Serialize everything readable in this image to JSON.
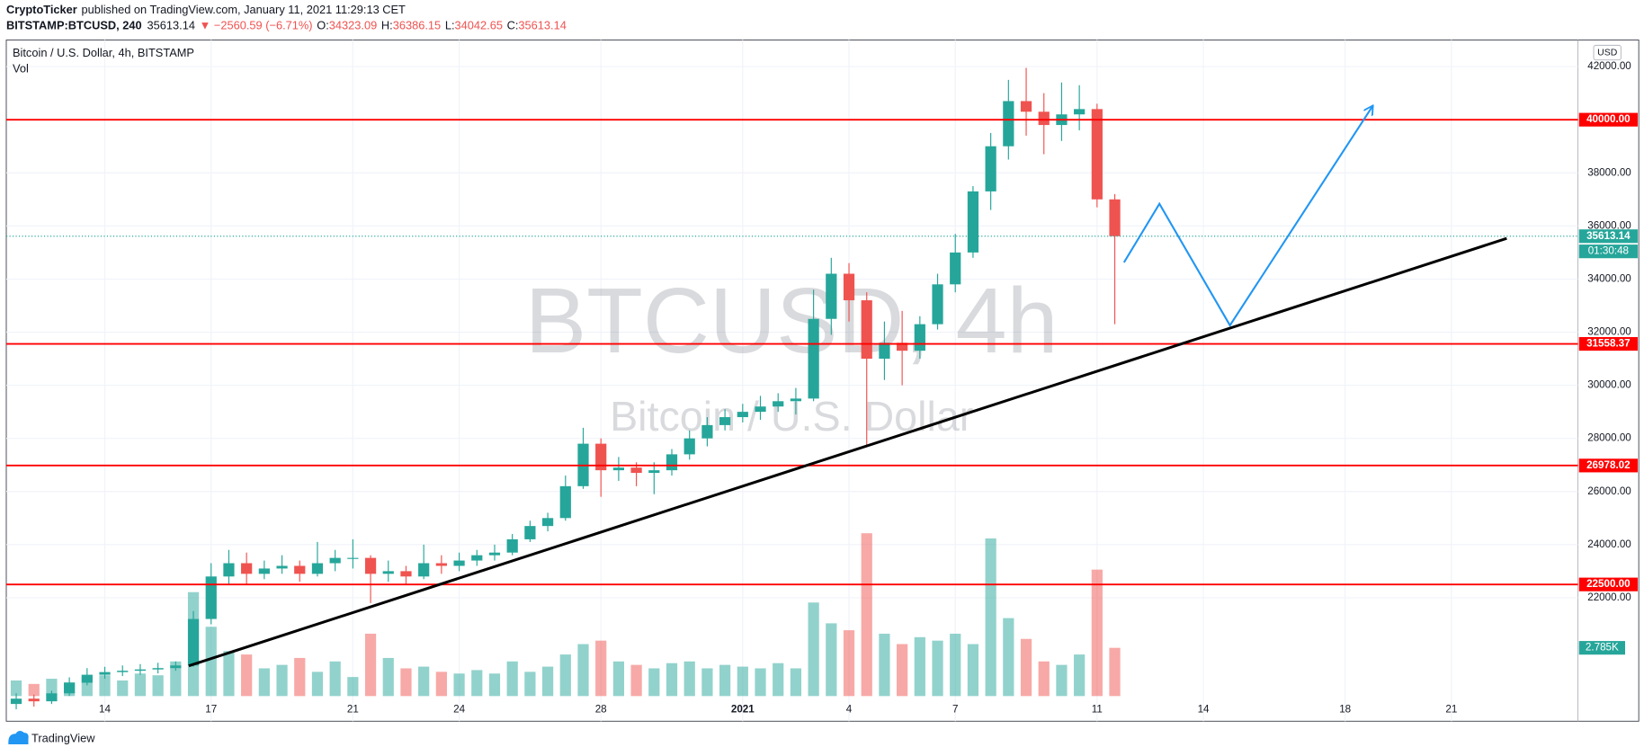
{
  "header": {
    "author": "CryptoTicker",
    "published": "published on TradingView.com, January 11, 2021 11:29:13 CET",
    "symbol": "BITSTAMP:BTCUSD, 240",
    "price": "35613.14",
    "change": "▼ −2560.59 (−6.71%)",
    "ohlc": [
      [
        "O:",
        "34323.09"
      ],
      [
        "H:",
        "36386.15"
      ],
      [
        "L:",
        "34042.65"
      ],
      [
        "C:",
        "35613.14"
      ]
    ]
  },
  "chart_data": {
    "type": "candlestick",
    "legend_title": "Bitcoin / U.S. Dollar, 4h, BITSTAMP",
    "currency": "USD",
    "watermark": [
      "BTCUSD, 4h",
      "Bitcoin / U.S. Dollar"
    ],
    "up_color": "#26a69a",
    "down_color": "#ef5350",
    "grid": true,
    "xlim": [
      -2.78,
      41.57
    ],
    "ylim": [
      17350,
      43000
    ],
    "xticks": [
      {
        "value": 0,
        "label": "14"
      },
      {
        "value": 3,
        "label": "17"
      },
      {
        "value": 7,
        "label": "21"
      },
      {
        "value": 10,
        "label": "24"
      },
      {
        "value": 14,
        "label": "28"
      },
      {
        "value": 18,
        "label": "2021"
      },
      {
        "value": 21,
        "label": "4"
      },
      {
        "value": 24,
        "label": "7"
      },
      {
        "value": 28,
        "label": "11"
      },
      {
        "value": 31,
        "label": "14"
      },
      {
        "value": 35,
        "label": "18"
      },
      {
        "value": 38,
        "label": "21"
      }
    ],
    "yticks": [
      {
        "value": 22000,
        "label": "22000.00"
      },
      {
        "value": 24000,
        "label": "24000.00"
      },
      {
        "value": 26000,
        "label": "26000.00"
      },
      {
        "value": 28000,
        "label": "28000.00"
      },
      {
        "value": 30000,
        "label": "30000.00"
      },
      {
        "value": 32000,
        "label": "32000.00"
      },
      {
        "value": 34000,
        "label": "34000.00"
      },
      {
        "value": 36000,
        "label": "36000.00"
      },
      {
        "value": 38000,
        "label": "38000.00"
      },
      {
        "value": 40000,
        "label": "40000.00"
      },
      {
        "value": 42000,
        "label": "42000.00"
      }
    ],
    "x": [
      -2.5,
      -2,
      -1.5,
      -1,
      -0.5,
      0,
      0.5,
      1,
      1.5,
      2,
      2.5,
      3,
      3.5,
      4,
      4.5,
      5,
      5.5,
      6,
      6.5,
      7,
      7.5,
      8,
      8.5,
      9,
      9.5,
      10,
      10.5,
      11,
      11.5,
      12,
      12.5,
      13,
      13.5,
      14,
      14.5,
      15,
      15.5,
      16,
      16.5,
      17,
      17.5,
      18,
      18.5,
      19,
      19.5,
      20,
      20.5,
      21,
      21.5,
      22,
      22.5,
      23,
      23.5,
      24,
      24.5,
      25,
      25.5,
      26,
      26.5,
      27,
      27.5,
      28,
      28.5
    ],
    "open": [
      18000,
      18200,
      18100,
      18400,
      18800,
      19100,
      19200,
      19250,
      19300,
      19350,
      19450,
      21200,
      22800,
      23300,
      22900,
      23100,
      23200,
      22900,
      23300,
      23500,
      23500,
      22900,
      23000,
      22800,
      23300,
      23200,
      23400,
      23600,
      23700,
      24200,
      24700,
      25000,
      26200,
      27800,
      26800,
      26900,
      26700,
      26800,
      27400,
      28000,
      28500,
      28800,
      29000,
      29200,
      29400,
      29500,
      32500,
      34200,
      33200,
      31000,
      31600,
      31300,
      32300,
      33800,
      35000,
      37300,
      39000,
      40700,
      40300,
      39800,
      40200,
      40400,
      37000
    ],
    "high": [
      18400,
      18350,
      18500,
      19000,
      19350,
      19400,
      19450,
      19500,
      19550,
      19600,
      21500,
      23300,
      23800,
      23700,
      23400,
      23600,
      23400,
      24100,
      23800,
      24200,
      23600,
      23400,
      23200,
      24000,
      23600,
      23700,
      23800,
      24000,
      24400,
      24900,
      25200,
      26600,
      28400,
      28000,
      27300,
      27100,
      27100,
      27600,
      28300,
      28800,
      29100,
      29300,
      29600,
      29700,
      29900,
      33600,
      34800,
      34600,
      33500,
      32400,
      32800,
      32600,
      34200,
      35700,
      37500,
      39500,
      41500,
      41950,
      41000,
      41400,
      41300,
      40600,
      37200
    ],
    "low": [
      17800,
      17900,
      18000,
      18300,
      18700,
      18950,
      19050,
      19100,
      19150,
      19250,
      19400,
      21000,
      22500,
      22500,
      22700,
      22900,
      22600,
      22800,
      23000,
      23100,
      21800,
      22600,
      22500,
      22700,
      22900,
      23000,
      23200,
      23400,
      23600,
      24100,
      24500,
      24900,
      26100,
      25800,
      26400,
      26200,
      25900,
      26600,
      27200,
      27700,
      28300,
      28600,
      28700,
      29000,
      28900,
      29400,
      31900,
      32400,
      27700,
      30200,
      30000,
      31000,
      32100,
      33500,
      34800,
      36600,
      38500,
      39400,
      38700,
      39200,
      39600,
      36700,
      32300
    ],
    "close": [
      18200,
      18100,
      18400,
      18800,
      19100,
      19200,
      19250,
      19300,
      19350,
      19450,
      21200,
      22800,
      23300,
      22900,
      23100,
      23200,
      22900,
      23300,
      23500,
      23500,
      22900,
      23000,
      22800,
      23300,
      23200,
      23400,
      23600,
      23700,
      24200,
      24700,
      25000,
      26200,
      27800,
      26800,
      26900,
      26700,
      26800,
      27400,
      28000,
      28500,
      28800,
      29000,
      29200,
      29400,
      29500,
      32500,
      34200,
      33200,
      31000,
      31600,
      31300,
      32300,
      33800,
      35000,
      37300,
      39000,
      40700,
      40300,
      39800,
      40200,
      40400,
      37000,
      35613.14
    ],
    "volume": {
      "name": "Vol",
      "vlim": [
        0,
        12.1
      ],
      "last_label": "2.785K",
      "values": [
        0.9,
        0.7,
        1.0,
        0.8,
        1.1,
        1.2,
        0.9,
        1.3,
        1.2,
        2.0,
        6.0,
        4.0,
        2.6,
        2.4,
        1.6,
        1.8,
        2.2,
        1.4,
        2.0,
        1.1,
        3.6,
        2.2,
        1.6,
        1.7,
        1.4,
        1.3,
        1.5,
        1.3,
        2.0,
        1.4,
        1.7,
        2.4,
        3.0,
        3.2,
        2.0,
        1.8,
        1.6,
        1.9,
        2.0,
        1.6,
        1.8,
        1.7,
        1.6,
        1.9,
        1.6,
        5.4,
        4.2,
        3.8,
        9.4,
        3.6,
        3.0,
        3.4,
        3.2,
        3.6,
        3.0,
        9.1,
        4.5,
        3.3,
        2.0,
        1.8,
        2.4,
        7.3,
        2.785
      ]
    },
    "levels": [
      {
        "value": 40000,
        "label": "40000.00"
      },
      {
        "value": 31558.37,
        "label": "31558.37"
      },
      {
        "value": 26978.02,
        "label": "26978.02"
      },
      {
        "value": 22500,
        "label": "22500.00"
      }
    ],
    "level_color": "#ff0000",
    "last_price": {
      "value": 35613.14,
      "label": "35613.14",
      "countdown": "01:30:48"
    },
    "trendline": {
      "color": "#000000",
      "x": [
        2.37,
        39.56
      ],
      "y": [
        19436,
        35531
      ]
    },
    "projection": {
      "color": "#2196f3",
      "x": [
        28.76,
        29.76,
        31.75,
        35.77
      ],
      "y": [
        34624,
        36832,
        32256,
        40501
      ]
    }
  },
  "footer": {
    "brand": "TradingView"
  }
}
